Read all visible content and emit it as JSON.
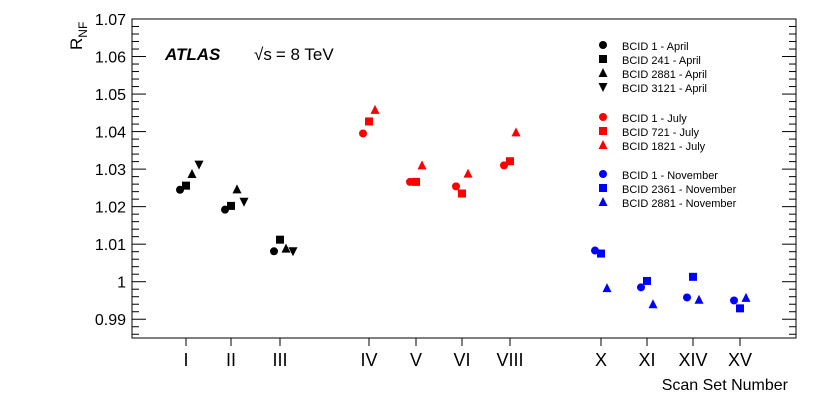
{
  "chart_data": {
    "type": "scatter",
    "xlabel": "Scan Set Number",
    "ylabel_main": "R",
    "ylabel_sub": "NF",
    "experiment": "ATLAS",
    "energy_prefix": "√s",
    "energy_value": "= 8 TeV",
    "ylim": [
      0.985,
      1.07
    ],
    "yticks": [
      {
        "value": 0.99,
        "label": "0.99"
      },
      {
        "value": 1.0,
        "label": "1"
      },
      {
        "value": 1.01,
        "label": "1.01"
      },
      {
        "value": 1.02,
        "label": "1.02"
      },
      {
        "value": 1.03,
        "label": "1.03"
      },
      {
        "value": 1.04,
        "label": "1.04"
      },
      {
        "value": 1.05,
        "label": "1.05"
      },
      {
        "value": 1.06,
        "label": "1.06"
      },
      {
        "value": 1.07,
        "label": "1.07"
      }
    ],
    "categories": [
      "I",
      "II",
      "III",
      "IV",
      "V",
      "VI",
      "VIII",
      "X",
      "XI",
      "XIV",
      "XV"
    ],
    "colors": {
      "april": "#000000",
      "july": "#ff0000",
      "november": "#0000ff"
    },
    "series": [
      {
        "name": "BCID 1 - April",
        "color": "#000000",
        "marker": "circle",
        "points": [
          {
            "x": "I",
            "y": 1.0245
          },
          {
            "x": "II",
            "y": 1.0192
          },
          {
            "x": "III",
            "y": 1.0081
          }
        ]
      },
      {
        "name": "BCID 241 - April",
        "color": "#000000",
        "marker": "square",
        "points": [
          {
            "x": "I",
            "y": 1.0256
          },
          {
            "x": "II",
            "y": 1.0202
          },
          {
            "x": "III",
            "y": 1.0112
          }
        ]
      },
      {
        "name": "BCID 2881 - April",
        "color": "#000000",
        "marker": "triangle-up",
        "points": [
          {
            "x": "I",
            "y": 1.0287
          },
          {
            "x": "II",
            "y": 1.0246
          },
          {
            "x": "III",
            "y": 1.0088
          }
        ]
      },
      {
        "name": "BCID 3121 - April",
        "color": "#000000",
        "marker": "triangle-down",
        "points": [
          {
            "x": "I",
            "y": 1.0312
          },
          {
            "x": "II",
            "y": 1.0213
          },
          {
            "x": "III",
            "y": 1.0081
          }
        ]
      },
      {
        "name": "BCID 1 - July",
        "color": "#ff0000",
        "marker": "circle",
        "points": [
          {
            "x": "IV",
            "y": 1.0395
          },
          {
            "x": "V",
            "y": 1.0266
          },
          {
            "x": "VI",
            "y": 1.0254
          },
          {
            "x": "VIII",
            "y": 1.031
          }
        ]
      },
      {
        "name": "BCID 721 - July",
        "color": "#ff0000",
        "marker": "square",
        "points": [
          {
            "x": "IV",
            "y": 1.0427
          },
          {
            "x": "V",
            "y": 1.0266
          },
          {
            "x": "VI",
            "y": 1.0235
          },
          {
            "x": "VIII",
            "y": 1.0321
          }
        ]
      },
      {
        "name": "BCID 1821 - July",
        "color": "#ff0000",
        "marker": "triangle-up",
        "points": [
          {
            "x": "IV",
            "y": 1.0458
          },
          {
            "x": "V",
            "y": 1.031
          },
          {
            "x": "VI",
            "y": 1.0288
          },
          {
            "x": "VIII",
            "y": 1.0398
          }
        ]
      },
      {
        "name": "BCID 1 - November",
        "color": "#0000ff",
        "marker": "circle",
        "points": [
          {
            "x": "X",
            "y": 1.0083
          },
          {
            "x": "XI",
            "y": 0.9985
          },
          {
            "x": "XIV",
            "y": 0.9958
          },
          {
            "x": "XV",
            "y": 0.995
          }
        ]
      },
      {
        "name": "BCID 2361 - November",
        "color": "#0000ff",
        "marker": "square",
        "points": [
          {
            "x": "X",
            "y": 1.0075
          },
          {
            "x": "XI",
            "y": 1.0002
          },
          {
            "x": "XIV",
            "y": 1.0013
          },
          {
            "x": "XV",
            "y": 0.9929
          }
        ]
      },
      {
        "name": "BCID 2881 - November",
        "color": "#0000ff",
        "marker": "triangle-up",
        "points": [
          {
            "x": "X",
            "y": 0.9983
          },
          {
            "x": "XI",
            "y": 0.994
          },
          {
            "x": "XIV",
            "y": 0.9952
          },
          {
            "x": "XV",
            "y": 0.9957
          }
        ]
      }
    ]
  }
}
